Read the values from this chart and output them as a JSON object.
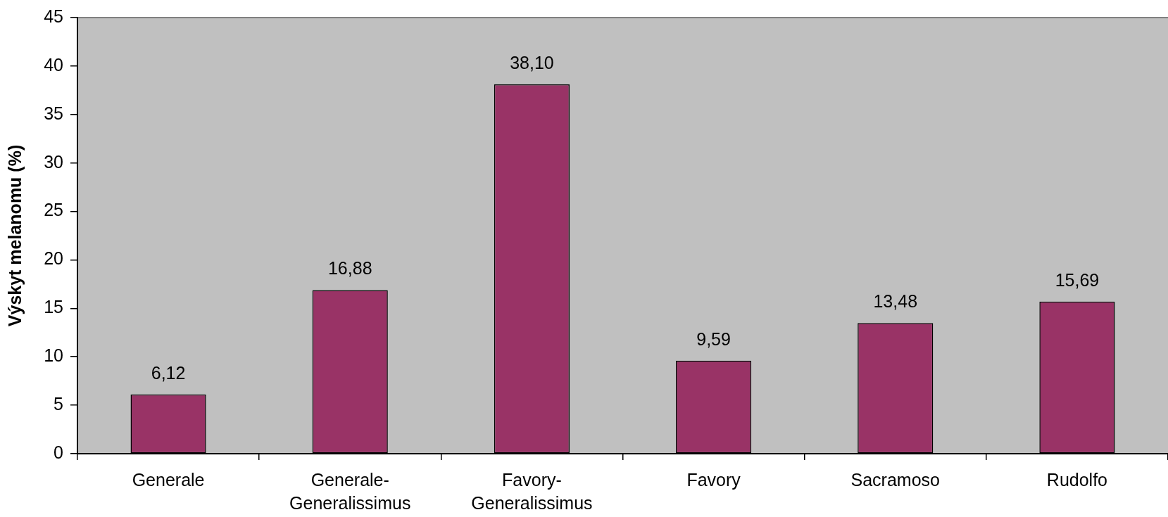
{
  "chart_data": {
    "type": "bar",
    "ylabel": "Výskyt melanomu (%)",
    "categories": [
      "Generale",
      "Generale-Generalissimus",
      "Favory-Generalissimus",
      "Favory",
      "Sacramoso",
      "Rudolfo"
    ],
    "values": [
      6.12,
      16.88,
      38.1,
      9.59,
      13.48,
      15.69
    ],
    "value_labels": [
      "6,12",
      "16,88",
      "38,10",
      "9,59",
      "13,48",
      "15,69"
    ],
    "color": "#993366",
    "ylim": [
      0,
      45
    ],
    "yticks": [
      0,
      5,
      10,
      15,
      20,
      25,
      30,
      35,
      40,
      45
    ]
  }
}
